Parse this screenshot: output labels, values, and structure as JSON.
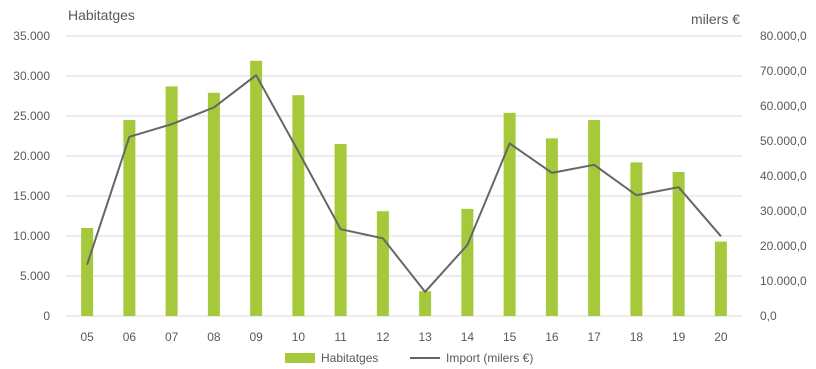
{
  "chart_data": {
    "type": "bar+line",
    "y_left_label": "Habitatges",
    "y_right_label": "milers €",
    "categories": [
      "05",
      "06",
      "07",
      "08",
      "09",
      "10",
      "11",
      "12",
      "13",
      "14",
      "15",
      "16",
      "17",
      "18",
      "19",
      "20"
    ],
    "series": [
      {
        "name": "Habitatges",
        "type": "bar",
        "axis": "left",
        "color": "#a5c93b",
        "values": [
          11000,
          24500,
          28700,
          27900,
          31900,
          27600,
          21500,
          13100,
          3100,
          13400,
          25400,
          22200,
          24500,
          19200,
          18000,
          9300
        ]
      },
      {
        "name": "Import (milers €)",
        "type": "line",
        "axis": "right",
        "color": "#666666",
        "values": [
          14700,
          51200,
          54800,
          59600,
          68800,
          47000,
          24800,
          22200,
          6900,
          20300,
          49300,
          40900,
          43200,
          34500,
          36800,
          22800
        ]
      }
    ],
    "y_left": {
      "min": 0,
      "max": 35000,
      "ticks": [
        "0",
        "5.000",
        "10.000",
        "15.000",
        "20.000",
        "25.000",
        "30.000",
        "35.000"
      ]
    },
    "y_right": {
      "min": 0,
      "max": 80000,
      "ticks": [
        "0,0",
        "10.000,0",
        "20.000,0",
        "30.000,0",
        "40.000,0",
        "50.000,0",
        "60.000,0",
        "70.000,0",
        "80.000,0"
      ]
    },
    "grid": true,
    "legend_position": "bottom",
    "gridline_color": "#d9d9d9"
  }
}
